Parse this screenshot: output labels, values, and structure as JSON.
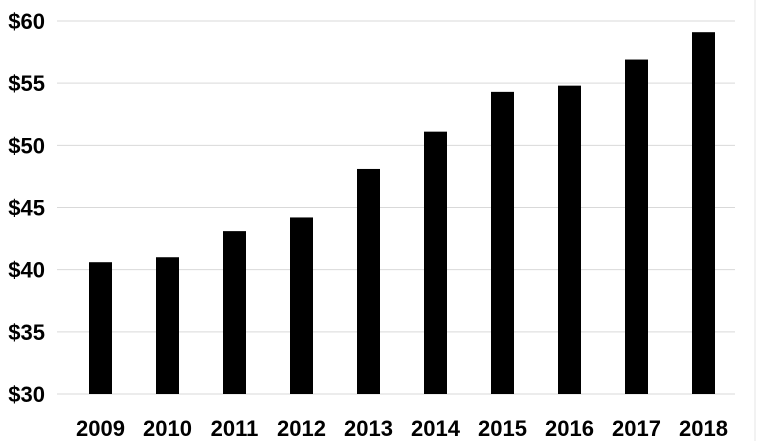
{
  "chart_data": {
    "type": "bar",
    "title": "",
    "xlabel": "",
    "ylabel": "",
    "categories": [
      "2009",
      "2010",
      "2011",
      "2012",
      "2013",
      "2014",
      "2015",
      "2016",
      "2017",
      "2018"
    ],
    "values": [
      40.6,
      41.0,
      43.1,
      44.2,
      48.1,
      51.1,
      54.3,
      54.8,
      56.9,
      59.1
    ],
    "ylim": [
      30,
      60
    ],
    "yticks": [
      30,
      35,
      40,
      45,
      50,
      55,
      60
    ],
    "ytick_labels": [
      "$30",
      "$35",
      "$40",
      "$45",
      "$50",
      "$55",
      "$60"
    ],
    "grid": true,
    "legend": "none",
    "colors": {
      "bar": "#000000",
      "grid": "#d9d9d9",
      "text": "#000000",
      "background": "#ffffff"
    }
  }
}
